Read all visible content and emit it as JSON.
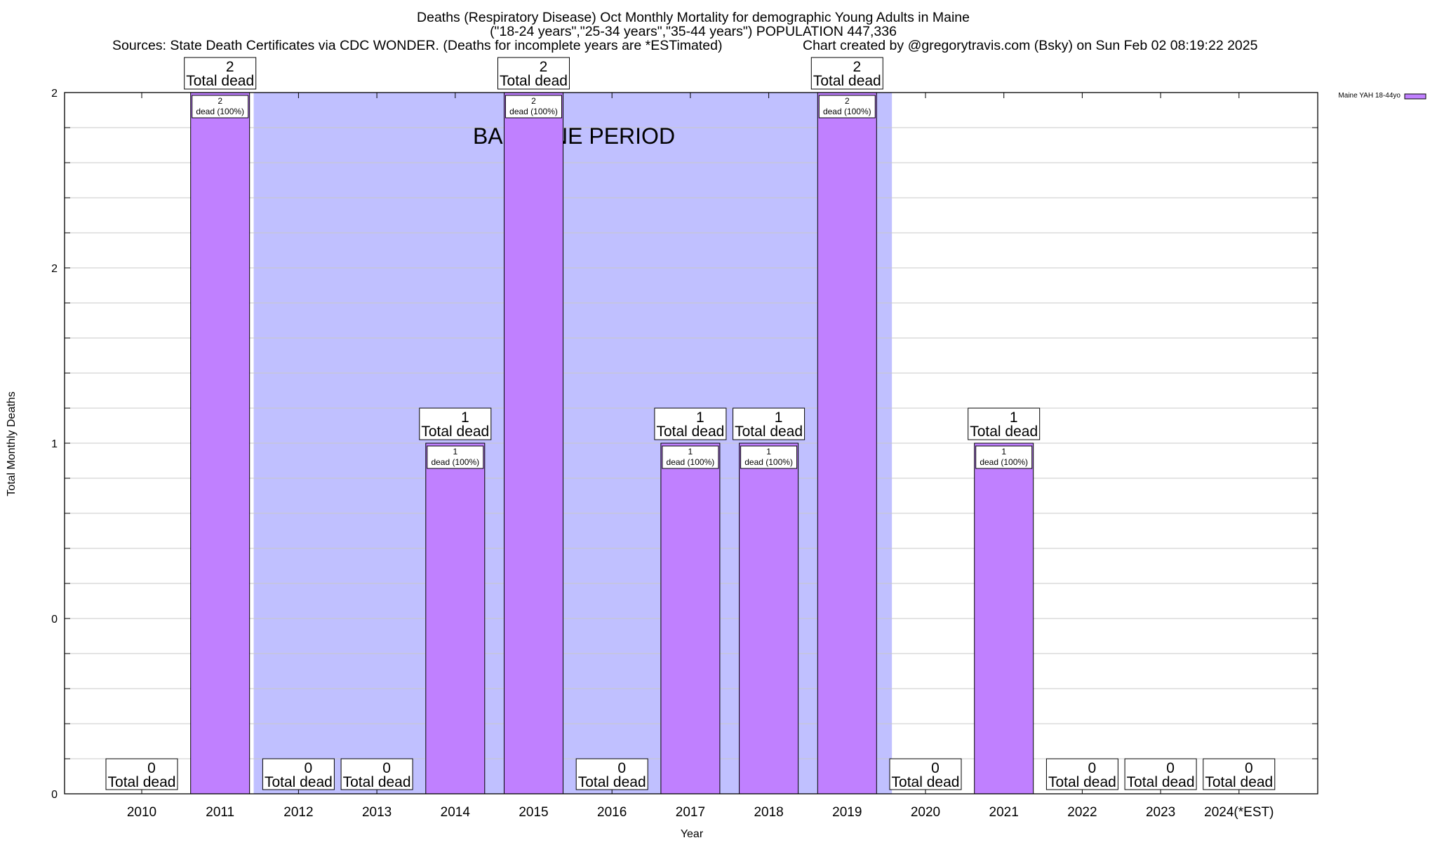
{
  "chart_data": {
    "type": "bar",
    "title": "Deaths (Respiratory Disease) Oct Monthly Mortality for demographic Young Adults in Maine",
    "subtitle": "(\"18-24 years\",\"25-34 years\",\"35-44 years\") POPULATION 447,336",
    "sources": "Sources: State Death Certificates via CDC WONDER. (Deaths for incomplete years are *ESTimated)",
    "credit": "Chart created by @gregorytravis.com (Bsky) on Sun Feb 02 08:19:22 2025",
    "xlabel": "Year",
    "ylabel": "Total Monthly Deaths",
    "ylim": [
      0,
      2
    ],
    "yticks": [
      0,
      0.5,
      1,
      1.5,
      2
    ],
    "ytick_labels": [
      "0",
      "0",
      "1",
      "2",
      "2"
    ],
    "grid": true,
    "categories": [
      "2010",
      "2011",
      "2012",
      "2013",
      "2014",
      "2015",
      "2016",
      "2017",
      "2018",
      "2019",
      "2020",
      "2021",
      "2022",
      "2023",
      "2024(*EST)"
    ],
    "series": [
      {
        "name": "Maine YAH 18-44yo",
        "color": "#c080ff",
        "values": [
          0,
          2,
          0,
          0,
          1,
          2,
          0,
          1,
          1,
          2,
          0,
          1,
          0,
          0,
          0
        ]
      }
    ],
    "total_label_suffix": "Total dead",
    "inner_label_suffix": "dead (100%)",
    "baseline": {
      "label": "BASELINE PERIOD",
      "from_index": 1.5,
      "to_index": 9.5,
      "color": "#c0c0ff"
    },
    "legend": {
      "position": "top-right",
      "label": "Maine YAH 18-44yo"
    }
  }
}
